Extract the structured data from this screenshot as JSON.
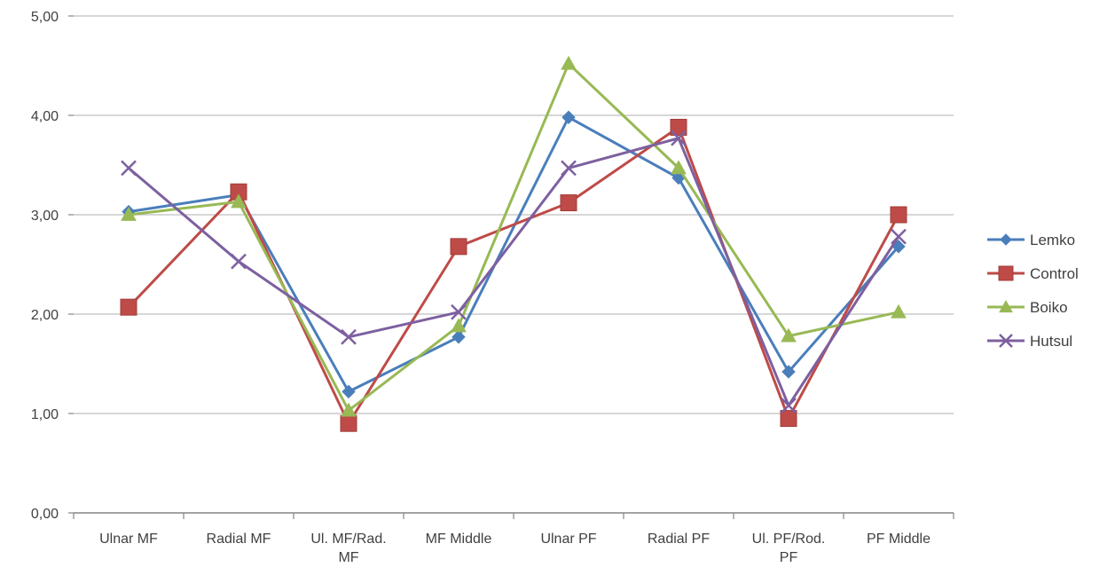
{
  "chart_data": {
    "type": "line",
    "categories": [
      [
        "Ulnar MF"
      ],
      [
        "Radial MF"
      ],
      [
        "Ul. MF/Rad.",
        "MF"
      ],
      [
        "MF Middle"
      ],
      [
        "Ulnar PF"
      ],
      [
        "Radial PF"
      ],
      [
        "Ul. PF/Rod.",
        "PF"
      ],
      [
        "PF Middle"
      ]
    ],
    "ylim": [
      0,
      5
    ],
    "yticks": [
      "0,00",
      "1,00",
      "2,00",
      "3,00",
      "4,00",
      "5,00"
    ],
    "grid": true,
    "legend_position": "right",
    "series": [
      {
        "name": "Lemko",
        "color": "#4a7ebb",
        "marker": "diamond",
        "values": [
          3.03,
          3.2,
          1.22,
          1.77,
          3.98,
          3.37,
          1.42,
          2.68
        ]
      },
      {
        "name": "Control",
        "color": "#be4b48",
        "marker": "square",
        "values": [
          2.07,
          3.23,
          0.9,
          2.68,
          3.12,
          3.88,
          0.95,
          3.0
        ]
      },
      {
        "name": "Boiko",
        "color": "#98b954",
        "marker": "triangle",
        "values": [
          3.0,
          3.13,
          1.03,
          1.88,
          4.52,
          3.47,
          1.78,
          2.02
        ]
      },
      {
        "name": "Hutsul",
        "color": "#7d60a0",
        "marker": "x",
        "values": [
          3.47,
          2.53,
          1.77,
          2.02,
          3.47,
          3.77,
          1.08,
          2.78
        ]
      }
    ]
  }
}
